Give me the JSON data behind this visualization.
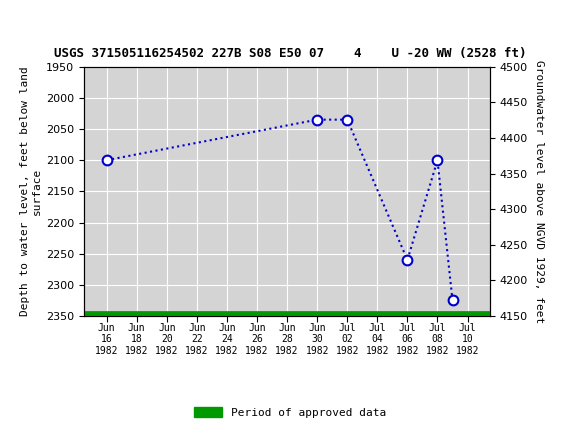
{
  "title": "USGS 371505116254502 227B S08 E50 07    4    U -20 WW (2528 ft)",
  "ylabel_left": "Depth to water level, feet below land\nsurface",
  "ylabel_right": "Groundwater level above NGVD 1929, feet",
  "ylim_left_top": 1950,
  "ylim_left_bottom": 2350,
  "ylim_right_top": 4500,
  "ylim_right_bottom": 4150,
  "yticks_left": [
    1950,
    2000,
    2050,
    2100,
    2150,
    2200,
    2250,
    2300,
    2350
  ],
  "yticks_right": [
    4500,
    4450,
    4400,
    4350,
    4300,
    4250,
    4200,
    4150
  ],
  "xtick_positions": [
    16,
    18,
    20,
    22,
    24,
    26,
    28,
    30,
    32,
    34,
    36,
    38,
    40
  ],
  "xtick_labels_row1": [
    "Jun 16",
    "Jun 18",
    "Jun 20",
    "Jun 22",
    "Jun 24",
    "Jun 26",
    "Jun 28",
    "Jun 30",
    "Jul 02",
    "Jul 04",
    "Jul 06",
    "Jul 08",
    "Jul 10"
  ],
  "xlim": [
    14.5,
    41.5
  ],
  "points_x": [
    16,
    30,
    32,
    36,
    38,
    39
  ],
  "points_y": [
    2100,
    2035,
    2035,
    2260,
    2100,
    2325
  ],
  "line_color": "#0000cc",
  "marker_facecolor": "white",
  "marker_edgecolor": "#0000cc",
  "green_bar_color": "#009900",
  "legend_label": "Period of approved data",
  "header_bg_color": "#1a6e3c",
  "plot_bg_color": "#d4d4d4",
  "grid_color": "#ffffff",
  "fig_bg_color": "#ffffff",
  "tick_fontsize": 8,
  "label_fontsize": 8,
  "title_fontsize": 9,
  "xtick_fontsize": 7
}
